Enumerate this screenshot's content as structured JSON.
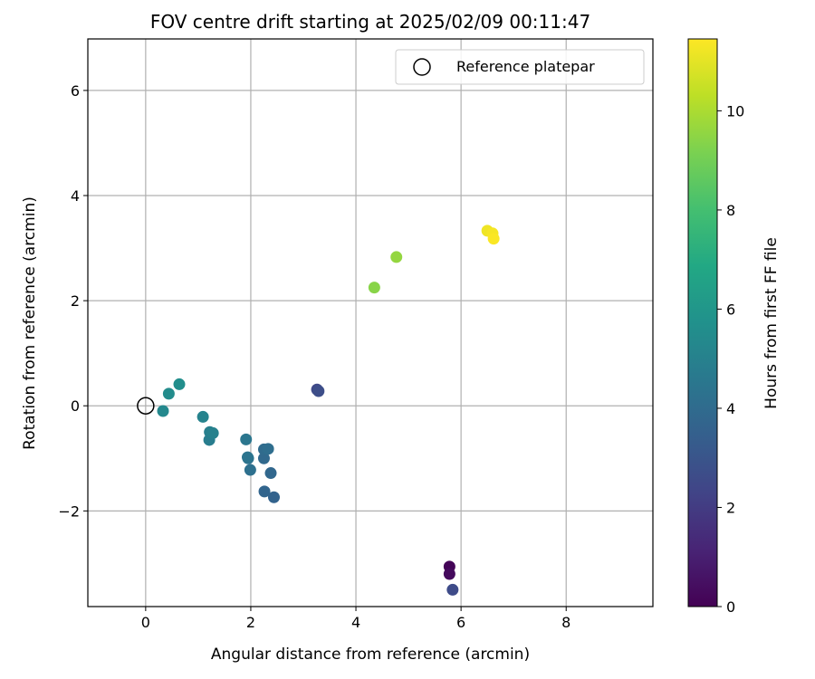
{
  "chart_data": {
    "type": "scatter",
    "title": "FOV centre drift starting at 2025/02/09 00:11:47",
    "xlabel": "Angular distance from reference (arcmin)",
    "ylabel": "Rotation from reference (arcmin)",
    "xlim": [
      -1.1,
      9.65
    ],
    "ylim": [
      -3.82,
      6.98
    ],
    "xticks": [
      0,
      2,
      4,
      6,
      8
    ],
    "yticks": [
      -2,
      0,
      2,
      4,
      6
    ],
    "xtick_labels": [
      "0",
      "2",
      "4",
      "6",
      "8"
    ],
    "ytick_labels": [
      "−2",
      "0",
      "2",
      "4",
      "6"
    ],
    "grid": true,
    "legend": {
      "position": "top-right",
      "entries": [
        {
          "label": "Reference platepar",
          "marker": "open-circle",
          "x": 0,
          "y": 0
        }
      ]
    },
    "colorbar": {
      "label": "Hours from first FF file",
      "colormap": "viridis",
      "min": 0,
      "max": 11.45,
      "ticks": [
        0,
        2,
        4,
        6,
        8,
        10
      ],
      "tick_labels": [
        "0",
        "2",
        "4",
        "6",
        "8",
        "10"
      ]
    },
    "points": [
      {
        "x": 5.78,
        "y": -3.06,
        "c": 0.1
      },
      {
        "x": 5.78,
        "y": -3.2,
        "c": 0.3
      },
      {
        "x": 5.84,
        "y": -3.5,
        "c": 2.6
      },
      {
        "x": 3.26,
        "y": 0.31,
        "c": 2.5
      },
      {
        "x": 3.29,
        "y": 0.28,
        "c": 2.7
      },
      {
        "x": 2.44,
        "y": -1.74,
        "c": 3.6
      },
      {
        "x": 2.26,
        "y": -1.63,
        "c": 3.7
      },
      {
        "x": 2.38,
        "y": -1.28,
        "c": 3.8
      },
      {
        "x": 2.25,
        "y": -1.0,
        "c": 3.9
      },
      {
        "x": 2.25,
        "y": -0.83,
        "c": 4.0
      },
      {
        "x": 2.33,
        "y": -0.82,
        "c": 4.1
      },
      {
        "x": 1.99,
        "y": -1.22,
        "c": 4.2
      },
      {
        "x": 1.95,
        "y": -1.0,
        "c": 4.3
      },
      {
        "x": 1.94,
        "y": -0.98,
        "c": 4.4
      },
      {
        "x": 1.91,
        "y": -0.64,
        "c": 4.5
      },
      {
        "x": 1.21,
        "y": -0.65,
        "c": 4.8
      },
      {
        "x": 1.22,
        "y": -0.5,
        "c": 4.9
      },
      {
        "x": 1.28,
        "y": -0.52,
        "c": 5.0
      },
      {
        "x": 1.09,
        "y": -0.21,
        "c": 5.1
      },
      {
        "x": 0.33,
        "y": -0.1,
        "c": 5.3
      },
      {
        "x": 0.44,
        "y": 0.23,
        "c": 5.5
      },
      {
        "x": 0.64,
        "y": 0.41,
        "c": 5.6
      },
      {
        "x": 4.35,
        "y": 2.25,
        "c": 9.4
      },
      {
        "x": 4.77,
        "y": 2.83,
        "c": 9.6
      },
      {
        "x": 6.5,
        "y": 3.33,
        "c": 11.2
      },
      {
        "x": 6.6,
        "y": 3.28,
        "c": 11.3
      },
      {
        "x": 6.62,
        "y": 3.18,
        "c": 11.4
      }
    ]
  }
}
